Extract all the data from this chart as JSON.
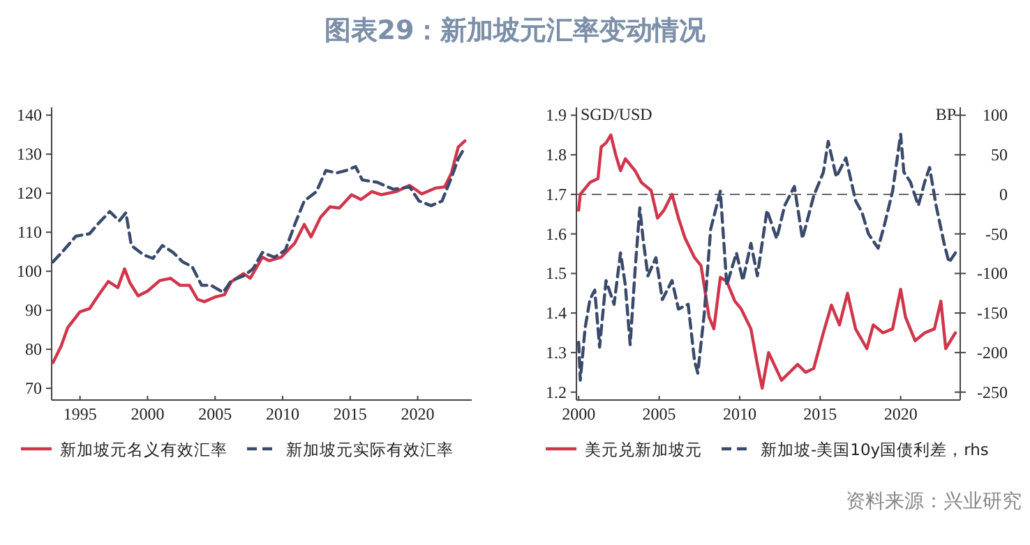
{
  "chart_data": [
    {
      "type": "line",
      "title": "图表29：新加坡元汇率变动情况",
      "xlim": [
        1992.9,
        2024
      ],
      "xticks": [
        1995,
        2000,
        2005,
        2010,
        2015,
        2020
      ],
      "ylim": [
        67,
        142
      ],
      "yticks": [
        70,
        80,
        90,
        100,
        110,
        120,
        130,
        140
      ],
      "grid": false,
      "legend": "bottom",
      "series": [
        {
          "name": "新加坡元名义有效汇率",
          "color": "#d0364b",
          "line_style": "solid",
          "x": [
            1993.0,
            1993.6,
            1994.1,
            1995,
            1995.7,
            1996.4,
            1997.1,
            1997.8,
            1998.3,
            1998.7,
            1999.3,
            2000,
            2000.9,
            2001.7,
            2002.4,
            2003.1,
            2003.7,
            2004.2,
            2005,
            2005.7,
            2006.2,
            2007.1,
            2007.6,
            2008.5,
            2009,
            2009.9,
            2010.9,
            2011.6,
            2012.1,
            2012.8,
            2013.5,
            2014.2,
            2015.1,
            2015.8,
            2016.6,
            2017.3,
            2018.4,
            2019.4,
            2020.3,
            2021.3,
            2022,
            2022.5,
            2023,
            2023.5
          ],
          "values": [
            76.6,
            80.8,
            85.6,
            89.6,
            90.4,
            94,
            97.4,
            95.8,
            100.6,
            97,
            93.7,
            94.9,
            97.6,
            98.2,
            96.4,
            96.4,
            92.8,
            92.2,
            93.4,
            94,
            97.3,
            99.4,
            98.2,
            103.6,
            102.7,
            103.6,
            107.2,
            112,
            108.8,
            113.8,
            116.5,
            116.2,
            119.6,
            118.4,
            120.4,
            119.6,
            120.4,
            122,
            119.8,
            121.3,
            121.6,
            125.2,
            131.8,
            133.4
          ]
        },
        {
          "name": "新加坡元实际有效汇率",
          "color": "#3a4a6b",
          "line_style": "dashed",
          "x": [
            1993,
            1993.8,
            1994.7,
            1995.7,
            1996.4,
            1997.2,
            1997.9,
            1998.4,
            1998.8,
            1999.7,
            2000.4,
            2001.1,
            2001.9,
            2002.6,
            2003.3,
            2004,
            2004.7,
            2005.6,
            2006.2,
            2007.1,
            2007.8,
            2008.5,
            2009.4,
            2010.2,
            2010.9,
            2011.6,
            2012.5,
            2013.2,
            2014,
            2014.7,
            2015.4,
            2015.9,
            2017,
            2018.2,
            2019.4,
            2020.1,
            2021,
            2021.8,
            2022.5,
            2023,
            2023.5
          ],
          "values": [
            102.4,
            105.4,
            109,
            109.6,
            112.4,
            115.3,
            112.9,
            115,
            106.6,
            104.2,
            103.3,
            106.6,
            104.8,
            102.4,
            101.2,
            96.4,
            96.4,
            94.6,
            97.6,
            98.8,
            100.6,
            104.8,
            103.6,
            105.4,
            112,
            118,
            120.4,
            125.8,
            125.2,
            125.8,
            126.8,
            123.4,
            122.8,
            121,
            121.6,
            118,
            116.8,
            118,
            124,
            128.8,
            131.8
          ]
        }
      ]
    },
    {
      "type": "line",
      "ylabel": "SGD/USD",
      "y2label": "BP",
      "xlim": [
        1999.86,
        2023.7
      ],
      "xticks": [
        2000,
        2005,
        2010,
        2015,
        2020
      ],
      "ylim": [
        1.18,
        1.92
      ],
      "yticks": [
        1.2,
        1.3,
        1.4,
        1.5,
        1.6,
        1.7,
        1.8,
        1.9
      ],
      "y2lim": [
        -260,
        110
      ],
      "y2ticks": [
        -250,
        -200,
        -150,
        -100,
        -50,
        0,
        50,
        100
      ],
      "grid": false,
      "legend": "bottom",
      "ref_lines": [
        {
          "axis": "y2",
          "value": 0,
          "line_style": "dashed",
          "color": "#555555"
        }
      ],
      "annotations": [
        "资料来源：兴业研究"
      ],
      "series": [
        {
          "name": "美元兑新加坡元",
          "color": "#d0364b",
          "line_style": "solid",
          "x": [
            2000,
            2000.1,
            2000.7,
            2001.2,
            2001.4,
            2001.7,
            2002,
            2002.3,
            2002.6,
            2002.9,
            2003.5,
            2003.9,
            2004.5,
            2004.9,
            2005.3,
            2005.8,
            2006.2,
            2006.6,
            2007.2,
            2007.6,
            2008.1,
            2008.4,
            2008.8,
            2009.2,
            2009.7,
            2010.1,
            2010.7,
            2011.1,
            2011.4,
            2011.8,
            2012.6,
            2013.1,
            2013.6,
            2014.1,
            2014.6,
            2015.2,
            2015.7,
            2016.2,
            2016.7,
            2017.2,
            2017.9,
            2018.3,
            2018.9,
            2019.5,
            2020,
            2020.3,
            2020.9,
            2021.5,
            2022.1,
            2022.5,
            2022.8,
            2023.4
          ],
          "values": [
            1.66,
            1.7,
            1.73,
            1.74,
            1.82,
            1.83,
            1.85,
            1.8,
            1.76,
            1.79,
            1.76,
            1.73,
            1.71,
            1.64,
            1.66,
            1.7,
            1.64,
            1.59,
            1.54,
            1.52,
            1.39,
            1.36,
            1.49,
            1.48,
            1.43,
            1.41,
            1.36,
            1.27,
            1.21,
            1.3,
            1.23,
            1.25,
            1.27,
            1.25,
            1.26,
            1.35,
            1.42,
            1.37,
            1.45,
            1.36,
            1.31,
            1.37,
            1.35,
            1.36,
            1.46,
            1.39,
            1.33,
            1.35,
            1.36,
            1.43,
            1.31,
            1.35
          ]
        },
        {
          "name": "新加坡-美国10y国债利差，rhs",
          "color": "#3a4a6b",
          "line_style": "dashed",
          "axis": "y2",
          "x": [
            2000,
            2000.1,
            2000.4,
            2000.7,
            2001,
            2001.3,
            2001.7,
            2002.2,
            2002.6,
            2002.9,
            2003.2,
            2003.5,
            2003.8,
            2004,
            2004.3,
            2004.8,
            2005.2,
            2005.8,
            2006.2,
            2006.8,
            2007.2,
            2007.4,
            2007.8,
            2008.2,
            2008.8,
            2009.2,
            2009.8,
            2010.2,
            2010.7,
            2011.1,
            2011.7,
            2012.3,
            2012.8,
            2013.4,
            2013.9,
            2014.6,
            2015.2,
            2015.5,
            2016,
            2016.6,
            2017.2,
            2017.6,
            2018,
            2018.6,
            2019,
            2019.5,
            2020,
            2020.2,
            2020.6,
            2021.1,
            2021.5,
            2021.8,
            2022.2,
            2022.7,
            2023,
            2023.4
          ],
          "values": [
            -187,
            -235,
            -169,
            -133,
            -121,
            -193,
            -109,
            -139,
            -74,
            -115,
            -190,
            -97,
            -17,
            -56,
            -103,
            -80,
            -133,
            -109,
            -145,
            -139,
            -211,
            -226,
            -151,
            -44,
            4,
            -115,
            -74,
            -109,
            -62,
            -103,
            -20,
            -56,
            -14,
            10,
            -56,
            -2,
            28,
            67,
            22,
            46,
            -8,
            -23,
            -50,
            -68,
            -38,
            4,
            76,
            28,
            16,
            -14,
            16,
            34,
            -14,
            -62,
            -86,
            -74
          ]
        }
      ]
    }
  ]
}
